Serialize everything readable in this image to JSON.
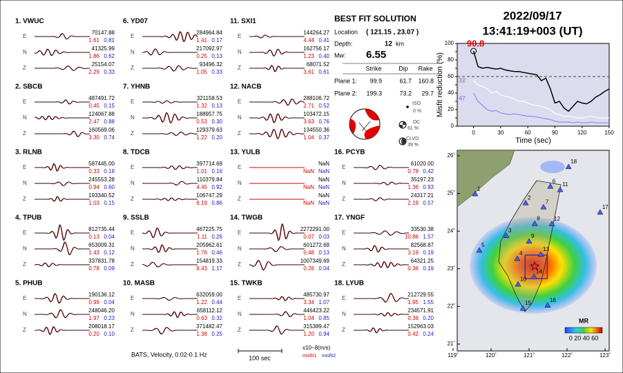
{
  "header": {
    "date": "2022/09/17",
    "time": "13:41:19+003  (UT)"
  },
  "solution": {
    "title": "BEST FIT SOLUTION",
    "location_label": "Location",
    "location": "( 121.15 , 23.07 )",
    "depth_label": "Depth:",
    "depth": "12",
    "depth_unit": "km",
    "mw_label": "Mw:",
    "mw": "6.55",
    "columns": [
      "Strike",
      "Dip",
      "Rake"
    ],
    "planes": [
      {
        "label": "Plane 1:",
        "values": [
          "99.9",
          "61.7",
          "160.8"
        ]
      },
      {
        "label": "Plane 2:",
        "values": [
          "199.3",
          "73.2",
          "29.7"
        ]
      }
    ],
    "components": [
      {
        "label": "ISO",
        "value": "0 %"
      },
      {
        "label": "DC",
        "value": "61 %"
      },
      {
        "label": "CLVD",
        "value": "39 %"
      }
    ]
  },
  "stations": [
    {
      "label": "1.  VWUC",
      "traces": [
        {
          "comp": "E",
          "amp": "70147.88",
          "m1": "1.61",
          "m2": "0.81"
        },
        {
          "comp": "N",
          "amp": "41325.99",
          "m1": "1.86",
          "m2": "0.62"
        },
        {
          "comp": "Z",
          "amp": "25154.07",
          "m1": "2.29",
          "m2": "0.33"
        }
      ]
    },
    {
      "label": "2.  SBCB",
      "traces": [
        {
          "comp": "E",
          "amp": "487491.72",
          "m1": "0.45",
          "m2": "0.15"
        },
        {
          "comp": "N",
          "amp": "124067.88",
          "m1": "2.47",
          "m2": "0.88"
        },
        {
          "comp": "Z",
          "amp": "160569.06",
          "m1": "3.30",
          "m2": "0.74"
        }
      ]
    },
    {
      "label": "3.  RLNB",
      "traces": [
        {
          "comp": "E",
          "amp": "587445.00",
          "m1": "0.33",
          "m2": "0.18"
        },
        {
          "comp": "N",
          "amp": "245553.28",
          "m1": "0.94",
          "m2": "0.60"
        },
        {
          "comp": "Z",
          "amp": "193340.52",
          "m1": "1.03",
          "m2": "0.15"
        }
      ]
    },
    {
      "label": "4.  TPUB",
      "traces": [
        {
          "comp": "E",
          "amp": "812735.44",
          "m1": "0.13",
          "m2": "0.04"
        },
        {
          "comp": "N",
          "amp": "653009.31",
          "m1": "1.43",
          "m2": "0.12"
        },
        {
          "comp": "Z",
          "amp": "337831.78",
          "m1": "0.78",
          "m2": "0.09"
        }
      ]
    },
    {
      "label": "5.  PHUB",
      "traces": [
        {
          "comp": "E",
          "amp": "190136.12",
          "m1": "0.99",
          "m2": "0.04"
        },
        {
          "comp": "N",
          "amp": "248046.20",
          "m1": "1.97",
          "m2": "0.23"
        },
        {
          "comp": "Z",
          "amp": "208018.17",
          "m1": "0.20",
          "m2": "0.10"
        }
      ]
    },
    {
      "label": "6.  YD07",
      "traces": [
        {
          "comp": "E",
          "amp": "284964.84",
          "m1": "1.41",
          "m2": "0.17"
        },
        {
          "comp": "N",
          "amp": "217092.97",
          "m1": "0.25",
          "m2": "0.13"
        },
        {
          "comp": "Z",
          "amp": "93496.32",
          "m1": "1.05",
          "m2": "0.33"
        }
      ]
    },
    {
      "label": "7.  YHNB",
      "traces": [
        {
          "comp": "E",
          "amp": "321158.53",
          "m1": "1.32",
          "m2": "0.13"
        },
        {
          "comp": "N",
          "amp": "188957.75",
          "m1": "0.53",
          "m2": "0.30"
        },
        {
          "comp": "Z",
          "amp": "129379.63",
          "m1": "1.22",
          "m2": "0.20"
        }
      ]
    },
    {
      "label": "8.  TDCB",
      "traces": [
        {
          "comp": "E",
          "amp": "397714.69",
          "m1": "1.01",
          "m2": "0.16"
        },
        {
          "comp": "N",
          "amp": "110379.84",
          "m1": "4.45",
          "m2": "0.92"
        },
        {
          "comp": "Z",
          "amp": "106747.29",
          "m1": "6.19",
          "m2": "0.86"
        }
      ]
    },
    {
      "label": "9.  SSLB",
      "traces": [
        {
          "comp": "E",
          "amp": "467225.75",
          "m1": "1.11",
          "m2": "0.26"
        },
        {
          "comp": "N",
          "amp": "205962.61",
          "m1": "1.76",
          "m2": "0.46"
        },
        {
          "comp": "Z",
          "amp": "154819.33",
          "m1": "8.43",
          "m2": "1.17"
        }
      ]
    },
    {
      "label": "10. MASB",
      "traces": [
        {
          "comp": "E",
          "amp": "632059.00",
          "m1": "1.22",
          "m2": "0.44"
        },
        {
          "comp": "N",
          "amp": "658112.12",
          "m1": "0.63",
          "m2": "0.32"
        },
        {
          "comp": "Z",
          "amp": "371482.47",
          "m1": "1.38",
          "m2": "0.25"
        }
      ]
    },
    {
      "label": "11. SXI1",
      "traces": [
        {
          "comp": "E",
          "amp": "144264.27",
          "m1": "4.44",
          "m2": "0.41"
        },
        {
          "comp": "N",
          "amp": "162756.17",
          "m1": "1.23",
          "m2": "0.40"
        },
        {
          "comp": "Z",
          "amp": "68071.52",
          "m1": "3.61",
          "m2": "0.61"
        }
      ]
    },
    {
      "label": "12. NACB",
      "traces": [
        {
          "comp": "E",
          "amp": "288106.72",
          "m1": "2.71",
          "m2": "0.52"
        },
        {
          "comp": "N",
          "amp": "103472.15",
          "m1": "3.63",
          "m2": "0.76"
        },
        {
          "comp": "Z",
          "amp": "134550.36",
          "m1": "1.04",
          "m2": "0.37"
        }
      ]
    },
    {
      "label": "13. YULB",
      "traces": [
        {
          "comp": "E",
          "amp": "NaN",
          "m1": "NaN",
          "m2": "NaN"
        },
        {
          "comp": "N",
          "amp": "NaN",
          "m1": "NaN",
          "m2": "NaN"
        },
        {
          "comp": "Z",
          "amp": "NaN",
          "m1": "NaN",
          "m2": "NaN"
        }
      ]
    },
    {
      "label": "14. TWGB",
      "traces": [
        {
          "comp": "E",
          "amp": "2272291.00",
          "m1": "0.07",
          "m2": "0.03"
        },
        {
          "comp": "N",
          "amp": "601272.69",
          "m1": "0.48",
          "m2": "0.13"
        },
        {
          "comp": "Z",
          "amp": "1007349.69",
          "m1": "0.26",
          "m2": "0.04"
        }
      ]
    },
    {
      "label": "15. TWKB",
      "traces": [
        {
          "comp": "E",
          "amp": "485730.97",
          "m1": "3.34",
          "m2": "1.07"
        },
        {
          "comp": "N",
          "amp": "446423.22",
          "m1": "1.04",
          "m2": "0.85"
        },
        {
          "comp": "Z",
          "amp": "315389.47",
          "m1": "1.20",
          "m2": "0.94"
        }
      ]
    },
    {
      "label": "16. PCYB",
      "traces": [
        {
          "comp": "E",
          "amp": "61020.00",
          "m1": "0.78",
          "m2": "0.42"
        },
        {
          "comp": "N",
          "amp": "35197.23",
          "m1": "1.36",
          "m2": "0.93"
        },
        {
          "comp": "Z",
          "amp": "24317.21",
          "m1": "2.19",
          "m2": "0.57"
        }
      ]
    },
    {
      "label": "17. YNGF",
      "traces": [
        {
          "comp": "E",
          "amp": "33530.38",
          "m1": "10.86",
          "m2": "1.57"
        },
        {
          "comp": "N",
          "amp": "82568.87",
          "m1": "3.19",
          "m2": "0.19"
        },
        {
          "comp": "Z",
          "amp": "64321.25",
          "m1": "0.36",
          "m2": "0.19"
        }
      ]
    },
    {
      "label": "18. LYUB",
      "traces": [
        {
          "comp": "E",
          "amp": "212729.55",
          "m1": "1.95",
          "m2": "1.55"
        },
        {
          "comp": "N",
          "amp": "234571.91",
          "m1": "0.36",
          "m2": "0.20"
        },
        {
          "comp": "Z",
          "amp": "152963.03",
          "m1": "0.42",
          "m2": "0.24"
        }
      ]
    }
  ],
  "footer": {
    "caption": "BATS, Velocity, 0.02-0.1 Hz",
    "scale": "100 sec",
    "units": "x10−8(m/s)",
    "misfit1": "misfit1",
    "misfit2": "misfit2"
  },
  "map": {
    "lon_ticks": [
      {
        "value": 119,
        "label": "119˚"
      },
      {
        "value": 120,
        "label": "120˚"
      },
      {
        "value": 121,
        "label": "121˚"
      },
      {
        "value": 122,
        "label": "122˚"
      },
      {
        "value": 123,
        "label": "123˚"
      }
    ],
    "lat_ticks": [
      {
        "value": 21,
        "label": "21˚"
      },
      {
        "value": 22,
        "label": "22˚"
      },
      {
        "value": 23,
        "label": "23˚"
      },
      {
        "value": 24,
        "label": "24˚"
      },
      {
        "value": 25,
        "label": "25˚"
      },
      {
        "value": 26,
        "label": "26˚"
      }
    ],
    "epicenter": [
      121.15,
      23.07
    ],
    "stations": [
      {
        "label": "1",
        "lon": 119.58,
        "lat": 24.99
      },
      {
        "label": "2",
        "lon": 120.91,
        "lat": 24.75
      },
      {
        "label": "3",
        "lon": 120.4,
        "lat": 23.88
      },
      {
        "label": "4",
        "lon": 120.69,
        "lat": 23.27
      },
      {
        "label": "5",
        "lon": 119.69,
        "lat": 23.49
      },
      {
        "label": "6",
        "lon": 121.56,
        "lat": 25.19
      },
      {
        "label": "7",
        "lon": 121.38,
        "lat": 24.64
      },
      {
        "label": "8",
        "lon": 121.15,
        "lat": 24.2
      },
      {
        "label": "9",
        "lon": 121.0,
        "lat": 23.73
      },
      {
        "label": "10",
        "lon": 120.71,
        "lat": 22.59
      },
      {
        "label": "11",
        "lon": 121.82,
        "lat": 25.1
      },
      {
        "label": "12",
        "lon": 121.6,
        "lat": 24.19
      },
      {
        "label": "13",
        "lon": 121.31,
        "lat": 23.38
      },
      {
        "label": "14",
        "lon": 121.13,
        "lat": 22.79
      },
      {
        "label": "15",
        "lon": 120.84,
        "lat": 21.95
      },
      {
        "label": "16",
        "lon": 121.49,
        "lat": 22.03
      },
      {
        "label": "17",
        "lon": 122.87,
        "lat": 24.5
      },
      {
        "label": "18",
        "lon": 122.04,
        "lat": 25.71
      }
    ],
    "colorbar_title": "MR",
    "colorbar_labels": "0 20 40 60"
  },
  "chart_data": {
    "type": "line",
    "xlabel": "Time (sec)",
    "ylabel": "Misfit reduction (%)",
    "x": [
      0,
      5,
      10,
      15,
      20,
      25,
      30,
      35,
      40,
      45,
      50,
      55,
      60,
      65,
      70,
      75,
      80,
      85,
      90,
      95,
      100,
      105,
      110,
      115,
      120,
      125,
      130,
      135,
      140,
      145,
      150
    ],
    "series": [
      {
        "color": "#000000",
        "values": [
          90.8,
          72,
          70,
          71,
          70,
          69,
          70,
          68,
          67,
          66,
          66,
          65,
          64,
          63,
          62,
          55,
          58,
          45,
          28,
          30,
          22,
          18,
          24,
          30,
          28,
          27,
          30,
          35,
          38,
          42,
          45
        ]
      },
      {
        "color": "#ffffff",
        "values": [
          55,
          50,
          48,
          45,
          40,
          42,
          38,
          36,
          35,
          33,
          30,
          30,
          28,
          26,
          25,
          24,
          22,
          20,
          15,
          14,
          12,
          12,
          11,
          10,
          10,
          11,
          12,
          11,
          10,
          10,
          10
        ]
      },
      {
        "color": "#8a8aff",
        "values": [
          40,
          30,
          25,
          20,
          18,
          19,
          16,
          15,
          14,
          15,
          14,
          13,
          12,
          12,
          11,
          10,
          9,
          8,
          6,
          5,
          5,
          5,
          4,
          5,
          4,
          4,
          5,
          4,
          4,
          4,
          4
        ]
      }
    ],
    "annotations": [
      "90.8",
      "32",
      "47"
    ],
    "reference_line": 60,
    "xlim": [
      -18,
      150
    ],
    "ylim": [
      0,
      100
    ],
    "xticks": [
      0,
      30,
      60,
      90,
      120,
      150
    ],
    "yticks": [
      0,
      10,
      20,
      30,
      40,
      50,
      60,
      70,
      80,
      90,
      100
    ]
  }
}
